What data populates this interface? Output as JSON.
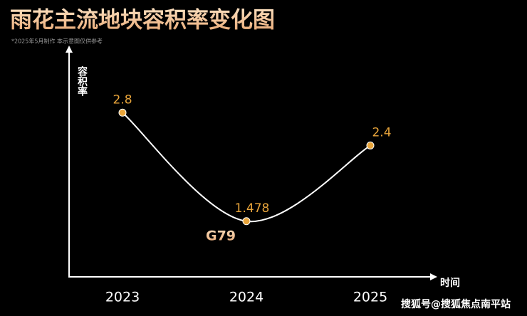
{
  "chart_data": {
    "type": "line",
    "title": "雨花主流地块容积率变化图",
    "subtitle": "*2025年5月制作 本示意图仅供参考",
    "y_label": "容积率",
    "x_label": "时间",
    "categories": [
      "2023",
      "2024",
      "2025"
    ],
    "series": [
      {
        "name": "容积率",
        "color": "#ffffff",
        "marker_color": "#e9a53b",
        "values": [
          2.8,
          1.478,
          2.4
        ]
      }
    ],
    "annotation": "G79",
    "watermark": "搜狐号@搜狐焦点南平站",
    "ylim": [
      0.8,
      3.6
    ],
    "grid": false
  }
}
